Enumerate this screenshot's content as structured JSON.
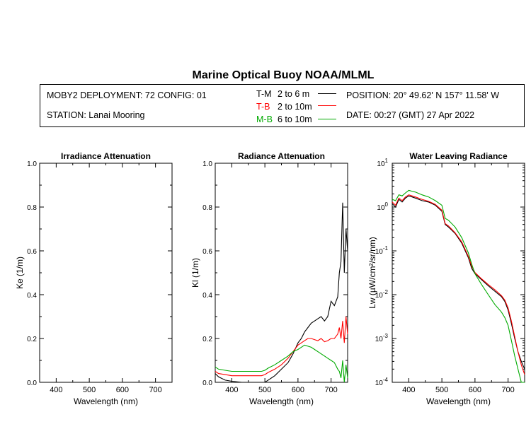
{
  "title": "Marine Optical Buoy NOAA/MLML",
  "header": {
    "deployment": "MOBY2 DEPLOYMENT: 72 CONFIG: 01",
    "station": "STATION: Lanai Mooring",
    "position": "POSITION: 20° 49.62' N   157° 11.58' W",
    "date": "DATE: 00:27 (GMT) 27 Apr 2022"
  },
  "legend": [
    {
      "code": "T-M",
      "range": "2 to 6  m",
      "color": "#000000"
    },
    {
      "code": "T-B",
      "range": "2 to 10m",
      "color": "#ff0000"
    },
    {
      "code": "M-B",
      "range": "6 to 10m",
      "color": "#00aa00"
    }
  ],
  "chart_data": [
    {
      "type": "line",
      "title": "Irradiance Attenuation",
      "xlabel": "Wavelength (nm)",
      "ylabel": "Ke  (1/m)",
      "xlim": [
        350,
        750
      ],
      "ylim": [
        0,
        1
      ],
      "xticks": [
        400,
        500,
        600,
        700
      ],
      "yticks": [
        "0.0",
        "0.2",
        "0.4",
        "0.6",
        "0.8",
        "1.0"
      ],
      "series": []
    },
    {
      "type": "line",
      "title": "Radiance Attenuation",
      "xlabel": "Wavelength (nm)",
      "ylabel": "Kl  (1/m)",
      "xlim": [
        350,
        750
      ],
      "ylim": [
        0,
        1
      ],
      "xticks": [
        400,
        500,
        600,
        700
      ],
      "yticks": [
        "0.0",
        "0.2",
        "0.4",
        "0.6",
        "0.8",
        "1.0"
      ],
      "series": [
        {
          "name": "T-M",
          "color": "#000000",
          "x": [
            350,
            360,
            380,
            400,
            430,
            460,
            490,
            500,
            510,
            530,
            550,
            570,
            585,
            600,
            610,
            620,
            630,
            640,
            650,
            660,
            670,
            680,
            690,
            700,
            710,
            720,
            725,
            730,
            735,
            740,
            745,
            750
          ],
          "y": [
            0.04,
            0.025,
            0.01,
            0.005,
            0.0,
            0.0,
            0.0,
            0.0,
            0.01,
            0.03,
            0.06,
            0.09,
            0.13,
            0.18,
            0.2,
            0.23,
            0.25,
            0.27,
            0.28,
            0.29,
            0.3,
            0.28,
            0.3,
            0.37,
            0.35,
            0.39,
            0.5,
            0.55,
            0.82,
            0.5,
            0.7,
            0.6
          ]
        },
        {
          "name": "T-B",
          "color": "#ff0000",
          "x": [
            350,
            360,
            380,
            400,
            430,
            460,
            490,
            500,
            510,
            530,
            550,
            570,
            585,
            600,
            610,
            620,
            630,
            640,
            650,
            660,
            670,
            680,
            690,
            700,
            710,
            720,
            725,
            730,
            735,
            740,
            745,
            750
          ],
          "y": [
            0.05,
            0.04,
            0.035,
            0.03,
            0.03,
            0.03,
            0.03,
            0.035,
            0.045,
            0.06,
            0.08,
            0.11,
            0.14,
            0.17,
            0.18,
            0.19,
            0.2,
            0.2,
            0.195,
            0.19,
            0.2,
            0.185,
            0.19,
            0.2,
            0.2,
            0.22,
            0.25,
            0.2,
            0.28,
            0.18,
            0.3,
            0.22
          ]
        },
        {
          "name": "M-B",
          "color": "#00aa00",
          "x": [
            350,
            360,
            380,
            400,
            430,
            460,
            490,
            500,
            510,
            530,
            550,
            570,
            585,
            600,
            610,
            620,
            630,
            640,
            650,
            660,
            670,
            680,
            690,
            700,
            710,
            720,
            725,
            730,
            735,
            740,
            745,
            750
          ],
          "y": [
            0.07,
            0.06,
            0.055,
            0.05,
            0.05,
            0.05,
            0.05,
            0.055,
            0.065,
            0.08,
            0.1,
            0.12,
            0.14,
            0.15,
            0.16,
            0.17,
            0.165,
            0.16,
            0.15,
            0.14,
            0.13,
            0.12,
            0.11,
            0.1,
            0.09,
            0.06,
            0.05,
            0.02,
            0.1,
            0.0,
            0.08,
            0.02
          ]
        }
      ]
    },
    {
      "type": "line",
      "title": "Water Leaving Radiance",
      "xlabel": "Wavelength (nm)",
      "ylabel": "Lw  (µW/cm²/sr/nm)",
      "scale": "log",
      "xlim": [
        350,
        750
      ],
      "ylim": [
        0.0001,
        10
      ],
      "xticks": [
        400,
        500,
        600,
        700
      ],
      "series": [
        {
          "name": "T-M",
          "color": "#000000",
          "x": [
            350,
            360,
            370,
            380,
            390,
            400,
            410,
            420,
            440,
            460,
            480,
            500,
            510,
            520,
            540,
            560,
            580,
            590,
            600,
            620,
            640,
            660,
            680,
            690,
            700,
            710,
            720,
            730,
            740,
            750
          ],
          "y": [
            1.2,
            1.0,
            1.5,
            1.3,
            1.6,
            1.8,
            1.7,
            1.6,
            1.4,
            1.3,
            1.1,
            0.8,
            0.4,
            0.35,
            0.25,
            0.15,
            0.07,
            0.04,
            0.03,
            0.022,
            0.016,
            0.012,
            0.009,
            0.007,
            0.0045,
            0.0022,
            0.001,
            0.0005,
            0.0003,
            0.0002
          ]
        },
        {
          "name": "T-B",
          "color": "#ff0000",
          "x": [
            350,
            360,
            370,
            380,
            390,
            400,
            410,
            420,
            440,
            460,
            480,
            500,
            510,
            520,
            540,
            560,
            580,
            590,
            600,
            620,
            640,
            660,
            680,
            690,
            700,
            710,
            720,
            730,
            740,
            750
          ],
          "y": [
            1.3,
            1.1,
            1.6,
            1.4,
            1.7,
            1.9,
            1.8,
            1.7,
            1.5,
            1.35,
            1.15,
            0.85,
            0.42,
            0.37,
            0.26,
            0.16,
            0.075,
            0.045,
            0.032,
            0.023,
            0.017,
            0.013,
            0.0095,
            0.0075,
            0.005,
            0.0025,
            0.0011,
            0.0005,
            0.00025,
            0.00015
          ]
        },
        {
          "name": "M-B",
          "color": "#00aa00",
          "x": [
            350,
            360,
            370,
            380,
            390,
            400,
            410,
            420,
            440,
            460,
            480,
            500,
            510,
            520,
            540,
            560,
            580,
            590,
            600,
            620,
            640,
            660,
            680,
            690,
            700,
            710,
            720,
            730,
            740,
            750
          ],
          "y": [
            1.5,
            1.4,
            1.9,
            1.8,
            2.1,
            2.4,
            2.3,
            2.2,
            1.9,
            1.7,
            1.4,
            1.1,
            0.55,
            0.5,
            0.35,
            0.2,
            0.09,
            0.05,
            0.03,
            0.017,
            0.01,
            0.006,
            0.004,
            0.003,
            0.002,
            0.0009,
            0.0004,
            0.0002,
            0.0001,
            0.0001
          ]
        }
      ]
    }
  ]
}
